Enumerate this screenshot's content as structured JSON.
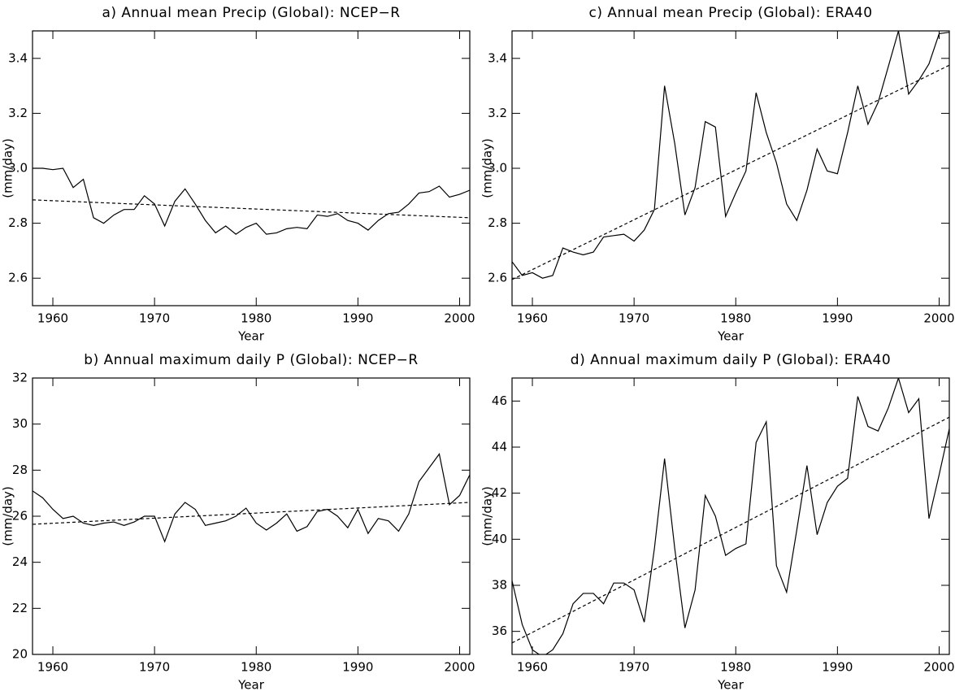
{
  "chart_data": [
    {
      "type": "line",
      "title": "a) Annual mean Precip (Global): NCEP−R",
      "xlabel": "Year",
      "ylabel": "(mm/day)",
      "x": [
        1958,
        1959,
        1960,
        1961,
        1962,
        1963,
        1964,
        1965,
        1966,
        1967,
        1968,
        1969,
        1970,
        1971,
        1972,
        1973,
        1974,
        1975,
        1976,
        1977,
        1978,
        1979,
        1980,
        1981,
        1982,
        1983,
        1984,
        1985,
        1986,
        1987,
        1988,
        1989,
        1990,
        1991,
        1992,
        1993,
        1994,
        1995,
        1996,
        1997,
        1998,
        1999,
        2000,
        2001
      ],
      "series": [
        {
          "color": "#000000",
          "values": [
            3.0,
            3.0,
            2.995,
            3.0,
            2.93,
            2.96,
            2.82,
            2.8,
            2.83,
            2.85,
            2.85,
            2.9,
            2.87,
            2.79,
            2.88,
            2.925,
            2.87,
            2.81,
            2.765,
            2.79,
            2.76,
            2.785,
            2.8,
            2.76,
            2.765,
            2.78,
            2.785,
            2.78,
            2.83,
            2.825,
            2.835,
            2.81,
            2.8,
            2.775,
            2.81,
            2.835,
            2.84,
            2.87,
            2.91,
            2.915,
            2.935,
            2.895,
            2.905,
            2.92
          ]
        },
        {
          "color": "#000000",
          "dashed": true,
          "x": [
            1958,
            2001
          ],
          "values": [
            2.885,
            2.82
          ]
        }
      ],
      "xlim": [
        1958,
        2001
      ],
      "xticks": [
        1960,
        1970,
        1980,
        1990,
        2000
      ],
      "ylim": [
        2.5,
        3.5
      ],
      "yticks": [
        {
          "value": 2.6,
          "label": "2.6"
        },
        {
          "value": 2.8,
          "label": "2.8"
        },
        {
          "value": 3.0,
          "label": "3.0"
        },
        {
          "value": 3.2,
          "label": "3.2"
        },
        {
          "value": 3.4,
          "label": "3.4"
        }
      ]
    },
    {
      "type": "line",
      "title": "b) Annual maximum daily P (Global): NCEP−R",
      "xlabel": "Year",
      "ylabel": "(mm/day)",
      "x": [
        1958,
        1959,
        1960,
        1961,
        1962,
        1963,
        1964,
        1965,
        1966,
        1967,
        1968,
        1969,
        1970,
        1971,
        1972,
        1973,
        1974,
        1975,
        1976,
        1977,
        1978,
        1979,
        1980,
        1981,
        1982,
        1983,
        1984,
        1985,
        1986,
        1987,
        1988,
        1989,
        1990,
        1991,
        1992,
        1993,
        1994,
        1995,
        1996,
        1997,
        1998,
        1999,
        2000,
        2001
      ],
      "series": [
        {
          "color": "#000000",
          "values": [
            27.1,
            26.8,
            26.3,
            25.9,
            26.0,
            25.7,
            25.6,
            25.7,
            25.75,
            25.6,
            25.75,
            26.0,
            26.0,
            24.9,
            26.1,
            26.6,
            26.3,
            25.6,
            25.7,
            25.8,
            26.0,
            26.35,
            25.7,
            25.4,
            25.7,
            26.1,
            25.35,
            25.55,
            26.2,
            26.3,
            26.0,
            25.5,
            26.3,
            25.25,
            25.9,
            25.8,
            25.35,
            26.1,
            27.5,
            28.1,
            28.7,
            26.5,
            26.9,
            27.8
          ]
        },
        {
          "color": "#000000",
          "dashed": true,
          "x": [
            1958,
            2001
          ],
          "values": [
            25.65,
            26.6
          ]
        }
      ],
      "xlim": [
        1958,
        2001
      ],
      "xticks": [
        1960,
        1970,
        1980,
        1990,
        2000
      ],
      "ylim": [
        20,
        32
      ],
      "yticks": [
        20,
        22,
        24,
        26,
        28,
        30,
        32
      ]
    },
    {
      "type": "line",
      "title": "c) Annual mean Precip (Global): ERA40",
      "xlabel": "Year",
      "ylabel": "(mm/day)",
      "x": [
        1958,
        1959,
        1960,
        1961,
        1962,
        1963,
        1964,
        1965,
        1966,
        1967,
        1968,
        1969,
        1970,
        1971,
        1972,
        1973,
        1974,
        1975,
        1976,
        1977,
        1978,
        1979,
        1980,
        1981,
        1982,
        1983,
        1984,
        1985,
        1986,
        1987,
        1988,
        1989,
        1990,
        1991,
        1992,
        1993,
        1994,
        1995,
        1996,
        1997,
        1998,
        1999,
        2000,
        2001
      ],
      "series": [
        {
          "color": "#000000",
          "values": [
            2.66,
            2.61,
            2.62,
            2.6,
            2.61,
            2.71,
            2.695,
            2.685,
            2.695,
            2.75,
            2.755,
            2.76,
            2.735,
            2.775,
            2.85,
            3.3,
            3.09,
            2.83,
            2.93,
            3.17,
            3.15,
            2.825,
            2.91,
            2.99,
            3.275,
            3.13,
            3.02,
            2.87,
            2.81,
            2.92,
            3.07,
            2.99,
            2.98,
            3.13,
            3.3,
            3.16,
            3.24,
            3.37,
            3.5,
            3.27,
            3.32,
            3.38,
            3.49,
            3.495
          ]
        },
        {
          "color": "#000000",
          "dashed": true,
          "x": [
            1958,
            2001
          ],
          "values": [
            2.595,
            3.375
          ]
        }
      ],
      "xlim": [
        1958,
        2001
      ],
      "xticks": [
        1960,
        1970,
        1980,
        1990,
        2000
      ],
      "ylim": [
        2.5,
        3.5
      ],
      "yticks": [
        {
          "value": 2.6,
          "label": "2.6"
        },
        {
          "value": 2.8,
          "label": "2.8"
        },
        {
          "value": 3.0,
          "label": "3.0"
        },
        {
          "value": 3.2,
          "label": "3.2"
        },
        {
          "value": 3.4,
          "label": "3.4"
        }
      ]
    },
    {
      "type": "line",
      "title": "d) Annual maximum daily P (Global): ERA40",
      "xlabel": "Year",
      "ylabel": "(mm/day)",
      "x": [
        1958,
        1959,
        1960,
        1961,
        1962,
        1963,
        1964,
        1965,
        1966,
        1967,
        1968,
        1969,
        1970,
        1971,
        1972,
        1973,
        1974,
        1975,
        1976,
        1977,
        1978,
        1979,
        1980,
        1981,
        1982,
        1983,
        1984,
        1985,
        1986,
        1987,
        1988,
        1989,
        1990,
        1991,
        1992,
        1993,
        1994,
        1995,
        1996,
        1997,
        1998,
        1999,
        2000,
        2001
      ],
      "series": [
        {
          "color": "#000000",
          "values": [
            38.2,
            36.3,
            35.2,
            34.9,
            35.2,
            35.9,
            37.2,
            37.65,
            37.65,
            37.2,
            38.1,
            38.1,
            37.8,
            36.4,
            39.6,
            43.5,
            39.6,
            36.15,
            37.8,
            41.9,
            41.0,
            39.3,
            39.6,
            39.8,
            44.2,
            45.1,
            38.85,
            37.7,
            40.4,
            43.2,
            40.2,
            41.6,
            42.3,
            42.65,
            46.2,
            44.9,
            44.7,
            45.7,
            47.0,
            45.5,
            46.1,
            40.9,
            42.8,
            44.8
          ]
        },
        {
          "color": "#000000",
          "dashed": true,
          "x": [
            1958,
            2001
          ],
          "values": [
            35.5,
            45.3
          ]
        }
      ],
      "xlim": [
        1958,
        2001
      ],
      "xticks": [
        1960,
        1970,
        1980,
        1990,
        2000
      ],
      "ylim": [
        35,
        47
      ],
      "yticks": [
        36,
        38,
        40,
        42,
        44,
        46
      ]
    }
  ]
}
